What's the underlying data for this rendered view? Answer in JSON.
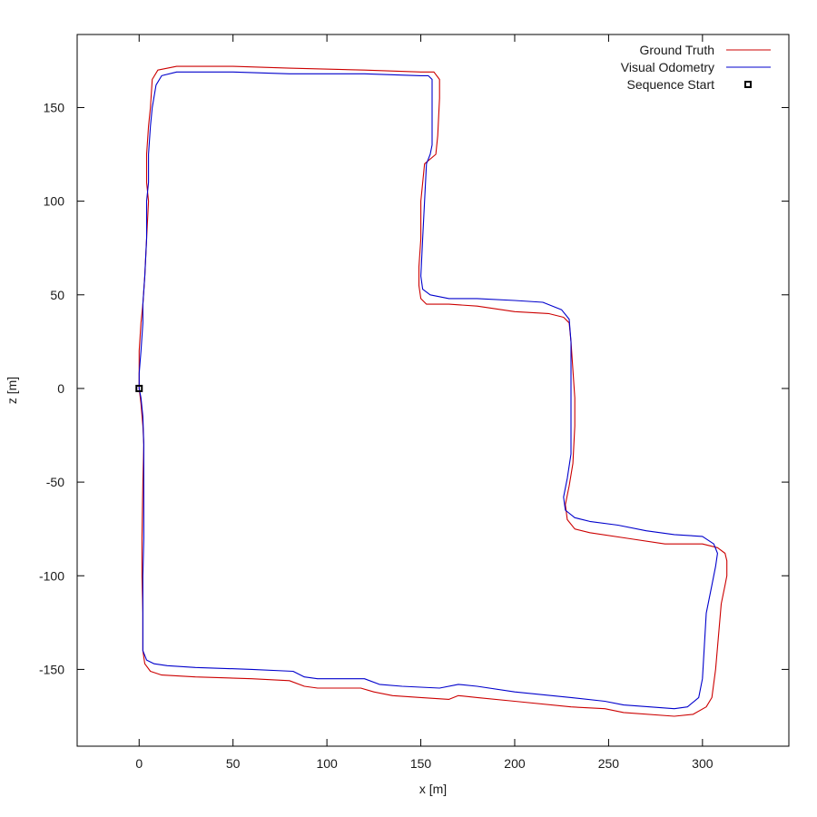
{
  "chart_data": {
    "type": "line",
    "xlabel": "x [m]",
    "ylabel": "z [m]",
    "xlim": [
      -33,
      346
    ],
    "ylim": [
      -191,
      189
    ],
    "xticks": [
      0,
      50,
      100,
      150,
      200,
      250,
      300
    ],
    "yticks": [
      -150,
      -100,
      -50,
      0,
      50,
      100,
      150
    ],
    "grid": false,
    "legend_position": "top-right",
    "series": [
      {
        "name": "Ground Truth",
        "color": "#cc0000",
        "points": [
          [
            0,
            0
          ],
          [
            1,
            -8
          ],
          [
            2,
            -20
          ],
          [
            2.5,
            -30
          ],
          [
            2,
            -50
          ],
          [
            1.5,
            -80
          ],
          [
            1.5,
            -100
          ],
          [
            2,
            -120
          ],
          [
            2,
            -140
          ],
          [
            3,
            -147
          ],
          [
            6,
            -151
          ],
          [
            12,
            -153
          ],
          [
            30,
            -154
          ],
          [
            60,
            -155
          ],
          [
            80,
            -156
          ],
          [
            88,
            -159
          ],
          [
            95,
            -160
          ],
          [
            110,
            -160
          ],
          [
            118,
            -160
          ],
          [
            125,
            -162
          ],
          [
            135,
            -164
          ],
          [
            150,
            -165
          ],
          [
            165,
            -166
          ],
          [
            170,
            -164
          ],
          [
            180,
            -165
          ],
          [
            200,
            -167
          ],
          [
            230,
            -170
          ],
          [
            248,
            -171
          ],
          [
            258,
            -173
          ],
          [
            285,
            -175
          ],
          [
            295,
            -174
          ],
          [
            302,
            -170
          ],
          [
            305,
            -165
          ],
          [
            307,
            -150
          ],
          [
            310,
            -115
          ],
          [
            312,
            -105
          ],
          [
            313,
            -100
          ],
          [
            313,
            -92
          ],
          [
            312,
            -88
          ],
          [
            308,
            -85
          ],
          [
            300,
            -83
          ],
          [
            280,
            -83
          ],
          [
            260,
            -80
          ],
          [
            240,
            -77
          ],
          [
            232,
            -75
          ],
          [
            228,
            -70
          ],
          [
            227,
            -62
          ],
          [
            229,
            -52
          ],
          [
            231,
            -40
          ],
          [
            232,
            -20
          ],
          [
            232,
            -5
          ],
          [
            231,
            10
          ],
          [
            230,
            25
          ],
          [
            229,
            35
          ],
          [
            226,
            38
          ],
          [
            218,
            40
          ],
          [
            200,
            41
          ],
          [
            180,
            44
          ],
          [
            165,
            45
          ],
          [
            153,
            45
          ],
          [
            150,
            48
          ],
          [
            149,
            55
          ],
          [
            149,
            65
          ],
          [
            150,
            80
          ],
          [
            150,
            100
          ],
          [
            152,
            120
          ],
          [
            158,
            125
          ],
          [
            159,
            135
          ],
          [
            160,
            155
          ],
          [
            160,
            165
          ],
          [
            157,
            169
          ],
          [
            150,
            169
          ],
          [
            120,
            170
          ],
          [
            80,
            171
          ],
          [
            50,
            172
          ],
          [
            20,
            172
          ],
          [
            10,
            170
          ],
          [
            7,
            165
          ],
          [
            6,
            150
          ],
          [
            5,
            140
          ],
          [
            4,
            125
          ],
          [
            4,
            110
          ],
          [
            5,
            100
          ],
          [
            4,
            80
          ],
          [
            3,
            60
          ],
          [
            2,
            45
          ],
          [
            1,
            35
          ],
          [
            0,
            20
          ],
          [
            0,
            8
          ],
          [
            0,
            0
          ]
        ]
      },
      {
        "name": "Visual Odometry",
        "color": "#0000cc",
        "points": [
          [
            0,
            0
          ],
          [
            1,
            -5
          ],
          [
            2,
            -15
          ],
          [
            2.5,
            -30
          ],
          [
            2.5,
            -50
          ],
          [
            2.5,
            -80
          ],
          [
            2,
            -100
          ],
          [
            2,
            -120
          ],
          [
            2,
            -140
          ],
          [
            4,
            -145
          ],
          [
            8,
            -147
          ],
          [
            15,
            -148
          ],
          [
            30,
            -149
          ],
          [
            60,
            -150
          ],
          [
            82,
            -151
          ],
          [
            88,
            -154
          ],
          [
            95,
            -155
          ],
          [
            110,
            -155
          ],
          [
            120,
            -155
          ],
          [
            128,
            -158
          ],
          [
            140,
            -159
          ],
          [
            160,
            -160
          ],
          [
            170,
            -158
          ],
          [
            180,
            -159
          ],
          [
            200,
            -162
          ],
          [
            230,
            -165
          ],
          [
            248,
            -167
          ],
          [
            258,
            -169
          ],
          [
            285,
            -171
          ],
          [
            292,
            -170
          ],
          [
            298,
            -165
          ],
          [
            300,
            -155
          ],
          [
            302,
            -120
          ],
          [
            305,
            -105
          ],
          [
            307,
            -95
          ],
          [
            308,
            -88
          ],
          [
            306,
            -83
          ],
          [
            300,
            -79
          ],
          [
            285,
            -78
          ],
          [
            270,
            -76
          ],
          [
            255,
            -73
          ],
          [
            240,
            -71
          ],
          [
            232,
            -69
          ],
          [
            227,
            -65
          ],
          [
            226,
            -58
          ],
          [
            228,
            -48
          ],
          [
            230,
            -35
          ],
          [
            230,
            -20
          ],
          [
            230,
            -5
          ],
          [
            230,
            10
          ],
          [
            230,
            25
          ],
          [
            229,
            37
          ],
          [
            225,
            42
          ],
          [
            215,
            46
          ],
          [
            200,
            47
          ],
          [
            180,
            48
          ],
          [
            165,
            48
          ],
          [
            155,
            50
          ],
          [
            151,
            53
          ],
          [
            150,
            60
          ],
          [
            151,
            80
          ],
          [
            152,
            100
          ],
          [
            153,
            120
          ],
          [
            155,
            125
          ],
          [
            156,
            130
          ],
          [
            156,
            140
          ],
          [
            156,
            155
          ],
          [
            156,
            165
          ],
          [
            154,
            167
          ],
          [
            150,
            167
          ],
          [
            120,
            168
          ],
          [
            80,
            168
          ],
          [
            50,
            169
          ],
          [
            20,
            169
          ],
          [
            12,
            167
          ],
          [
            9,
            162
          ],
          [
            7,
            150
          ],
          [
            6,
            140
          ],
          [
            5,
            125
          ],
          [
            5,
            110
          ],
          [
            4,
            100
          ],
          [
            4,
            80
          ],
          [
            3,
            60
          ],
          [
            2,
            45
          ],
          [
            2,
            35
          ],
          [
            1,
            20
          ],
          [
            0,
            8
          ],
          [
            0,
            0
          ]
        ]
      },
      {
        "name": "Sequence Start",
        "color": "#000000",
        "marker": "square",
        "points": [
          [
            0,
            0
          ]
        ]
      }
    ]
  }
}
